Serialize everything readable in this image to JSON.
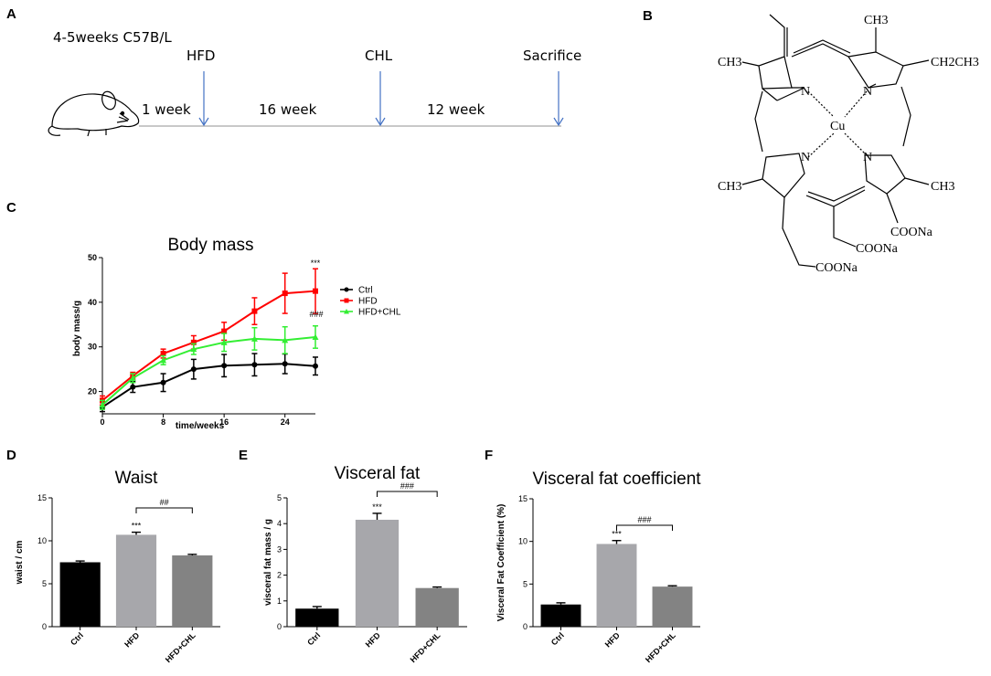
{
  "panels": {
    "a": {
      "label": "A",
      "strain": "4-5weeks C57B/L",
      "events": [
        "HFD",
        "CHL",
        "Sacrifice"
      ],
      "durations": [
        "1 week",
        "16 week",
        "12 week"
      ]
    },
    "b": {
      "label": "B",
      "molecule": {
        "center": "Cu",
        "nitrogens": [
          "N",
          "N",
          "N",
          "N"
        ],
        "groups": [
          "CH3",
          "CH3",
          "CH2CH3",
          "CH3",
          "CH3",
          "COONa",
          "COONa",
          "COONa"
        ]
      }
    },
    "c": {
      "label": "C"
    },
    "d": {
      "label": "D"
    },
    "e": {
      "label": "E"
    },
    "f": {
      "label": "F"
    }
  },
  "chart_data": [
    {
      "id": "body-mass",
      "type": "line",
      "title": "Body mass",
      "xlabel": "time/weeks",
      "ylabel": "body mass/g",
      "xlim": [
        0,
        28
      ],
      "ylim": [
        15,
        50
      ],
      "xticks": [
        0,
        8,
        16,
        24
      ],
      "yticks": [
        20,
        30,
        40,
        50
      ],
      "series": [
        {
          "name": "Ctrl",
          "color": "#000000",
          "marker": "circle",
          "x": [
            0,
            4,
            8,
            12,
            16,
            20,
            24,
            28
          ],
          "values": [
            16.5,
            21,
            22,
            25,
            25.8,
            26,
            26.2,
            25.7
          ],
          "errors": [
            1.0,
            1.2,
            2.0,
            2.2,
            2.5,
            2.5,
            2.2,
            2.0
          ]
        },
        {
          "name": "HFD",
          "color": "#ff0000",
          "marker": "square",
          "x": [
            0,
            4,
            8,
            12,
            16,
            20,
            24,
            28
          ],
          "values": [
            18,
            23.5,
            28.5,
            31,
            33.5,
            38,
            42,
            42.5
          ],
          "errors": [
            1.0,
            0.8,
            1.0,
            1.5,
            2.0,
            3.0,
            4.5,
            5.0
          ]
        },
        {
          "name": "HFD+CHL",
          "color": "#33ee33",
          "marker": "triangle",
          "x": [
            0,
            4,
            8,
            12,
            16,
            20,
            24,
            28
          ],
          "values": [
            17,
            23,
            27,
            29.5,
            31,
            31.8,
            31.5,
            32.2
          ],
          "errors": [
            1.0,
            1.0,
            1.0,
            1.2,
            2.0,
            2.5,
            3.0,
            2.5
          ]
        }
      ],
      "annotations": [
        "***",
        "###"
      ]
    },
    {
      "id": "waist",
      "type": "bar",
      "title": "Waist",
      "ylabel": "waist / cm",
      "categories": [
        "Ctrl",
        "HFD",
        "HFD+CHL"
      ],
      "values": [
        7.5,
        10.7,
        8.3
      ],
      "errors": [
        0.15,
        0.3,
        0.12
      ],
      "colors": [
        "#000000",
        "#a7a7ab",
        "#838383"
      ],
      "ylim": [
        0,
        15
      ],
      "yticks": [
        0,
        5,
        10,
        15
      ],
      "annotations": [
        "***",
        "##"
      ]
    },
    {
      "id": "visceral-fat",
      "type": "bar",
      "title": "Visceral fat",
      "ylabel": "visceral fat mass / g",
      "categories": [
        "Ctrl",
        "HFD",
        "HFD+CHL"
      ],
      "values": [
        0.7,
        4.15,
        1.5
      ],
      "errors": [
        0.08,
        0.25,
        0.04
      ],
      "colors": [
        "#000000",
        "#a7a7ab",
        "#838383"
      ],
      "ylim": [
        0,
        5
      ],
      "yticks": [
        0,
        1,
        2,
        3,
        4,
        5
      ],
      "annotations": [
        "***",
        "###"
      ]
    },
    {
      "id": "visceral-fat-coefficient",
      "type": "bar",
      "title": "Visceral fat coefficient",
      "ylabel": "Visceral Fat Coefficient (%)",
      "categories": [
        "Ctrl",
        "HFD",
        "HFD+CHL"
      ],
      "values": [
        2.6,
        9.7,
        4.7
      ],
      "errors": [
        0.2,
        0.4,
        0.1
      ],
      "colors": [
        "#000000",
        "#a7a7ab",
        "#838383"
      ],
      "ylim": [
        0,
        15
      ],
      "yticks": [
        0,
        5,
        10,
        15
      ],
      "annotations": [
        "***",
        "###"
      ]
    }
  ]
}
